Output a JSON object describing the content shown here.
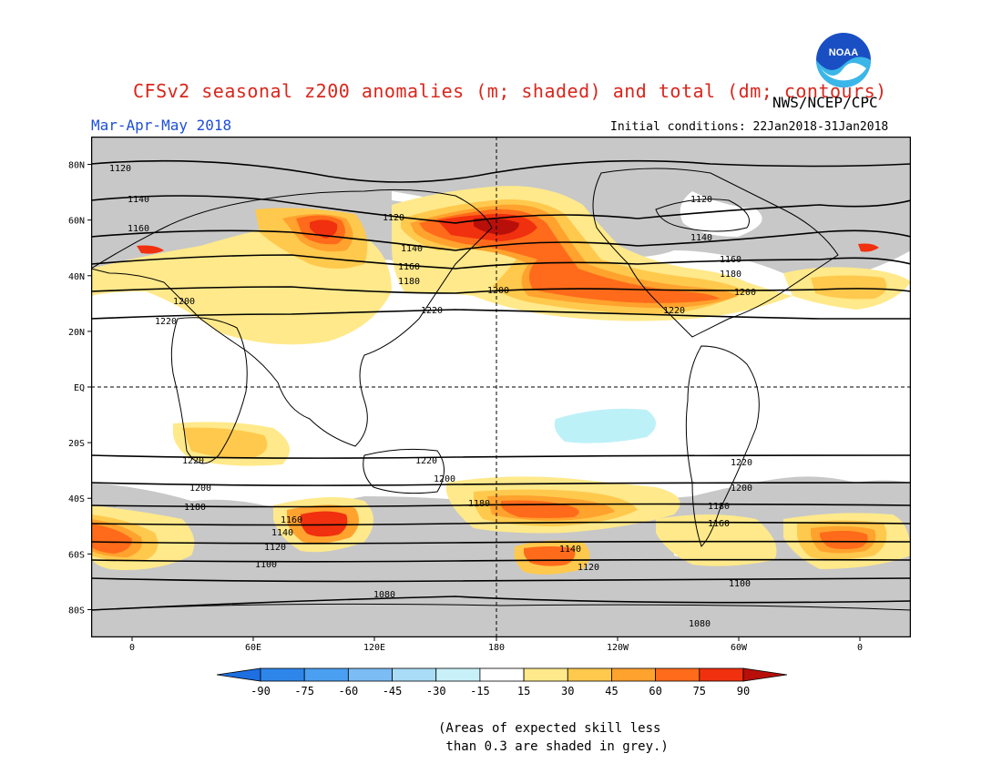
{
  "title": "CFSv2 seasonal z200 anomalies (m; shaded) and total (dm; contours)",
  "agency": "NWS/NCEP/CPC",
  "season": "Mar-Apr-May 2018",
  "initial_conditions": "Initial conditions: 22Jan2018-31Jan2018",
  "logo_text": "NOAA",
  "lat_labels": [
    "80N",
    "60N",
    "40N",
    "20N",
    "EQ",
    "20S",
    "40S",
    "60S",
    "80S"
  ],
  "lon_labels": [
    "0",
    "60E",
    "120E",
    "180",
    "120W",
    "60W",
    "0"
  ],
  "colorbar": {
    "ticks": [
      "-90",
      "-75",
      "-60",
      "-45",
      "-30",
      "-15",
      "15",
      "30",
      "45",
      "60",
      "75",
      "90"
    ],
    "colors": [
      "#1e6fe0",
      "#2e86ea",
      "#4a9ff0",
      "#7cbcf5",
      "#a8dcf7",
      "#c8f0f8",
      "#ffffff",
      "#ffe98a",
      "#ffc94d",
      "#ffa22e",
      "#ff6b1a",
      "#f0300e",
      "#b80f0a"
    ]
  },
  "contour_labels": {
    "nh": [
      "1120",
      "1140",
      "1160",
      "1180",
      "1200",
      "1220"
    ],
    "sh": [
      "1220",
      "1200",
      "1180",
      "1160",
      "1140",
      "1120",
      "1100",
      "1080"
    ]
  },
  "note": "(Areas of expected skill less\n than 0.3 are shaded in grey.)",
  "colors": {
    "grey_mask": "#c8c8c8",
    "title_red": "#d9261c",
    "season_blue": "#1f4fd6"
  }
}
